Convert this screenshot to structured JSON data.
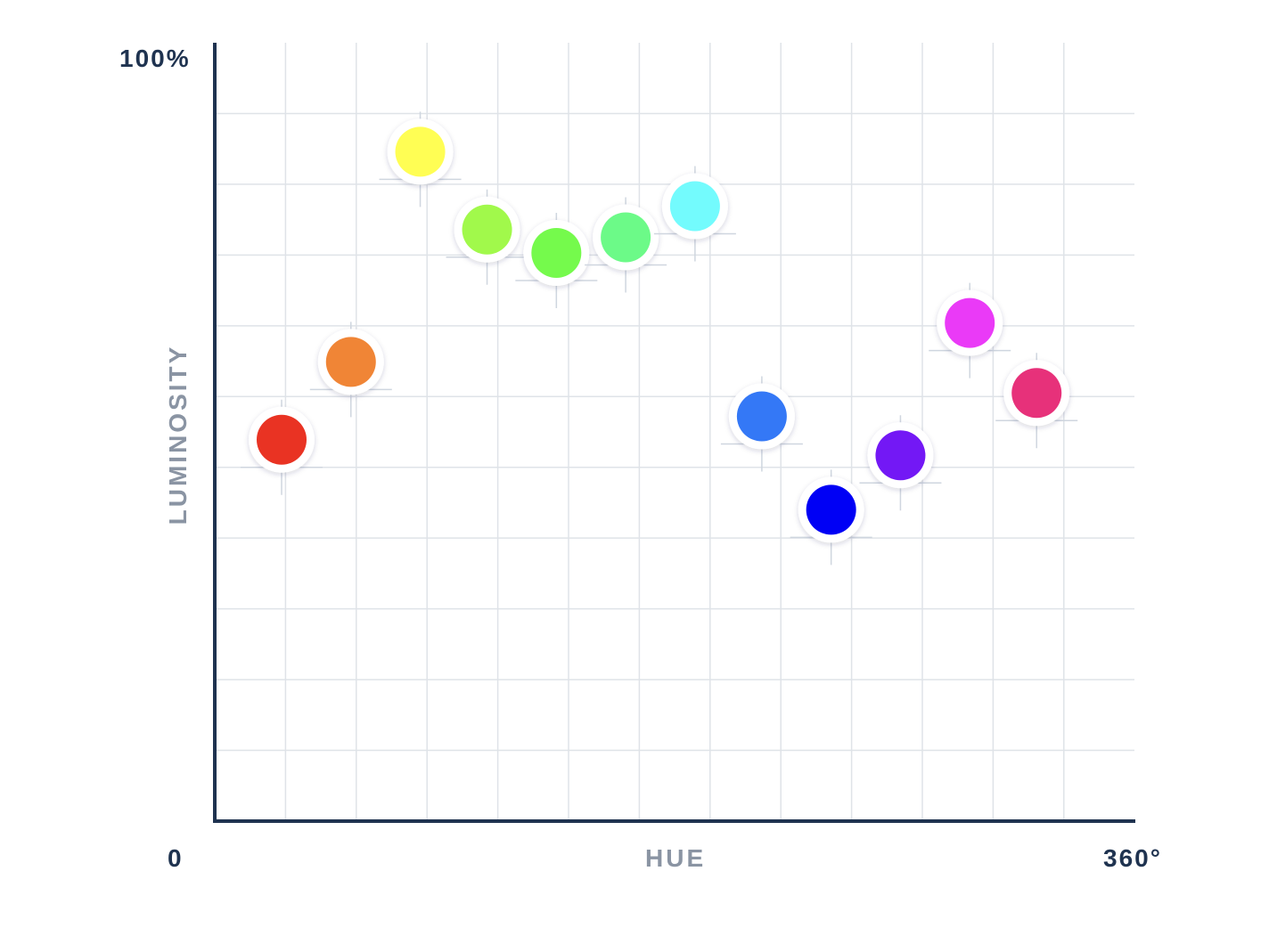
{
  "chart_data": {
    "type": "scatter",
    "xlabel": "HUE",
    "ylabel": "LUMINOSITY",
    "x_min_label": "0",
    "x_max_label": "360°",
    "y_max_label": "100%",
    "xlim": [
      0,
      360
    ],
    "ylim": [
      0,
      100
    ],
    "grid": true,
    "points": [
      {
        "x": 27,
        "y": 49,
        "color": "#e93323"
      },
      {
        "x": 55,
        "y": 59,
        "color": "#f08536"
      },
      {
        "x": 83,
        "y": 86,
        "color": "#fffe54"
      },
      {
        "x": 110,
        "y": 76,
        "color": "#a1f94b"
      },
      {
        "x": 138,
        "y": 73,
        "color": "#75fa4c"
      },
      {
        "x": 166,
        "y": 75,
        "color": "#6cfa88"
      },
      {
        "x": 194,
        "y": 79,
        "color": "#73fbfd"
      },
      {
        "x": 221,
        "y": 52,
        "color": "#3478f6"
      },
      {
        "x": 249,
        "y": 40,
        "color": "#0000f5"
      },
      {
        "x": 277,
        "y": 47,
        "color": "#7318f5"
      },
      {
        "x": 305,
        "y": 64,
        "color": "#ea3af7"
      },
      {
        "x": 332,
        "y": 55,
        "color": "#e7317a"
      }
    ]
  }
}
